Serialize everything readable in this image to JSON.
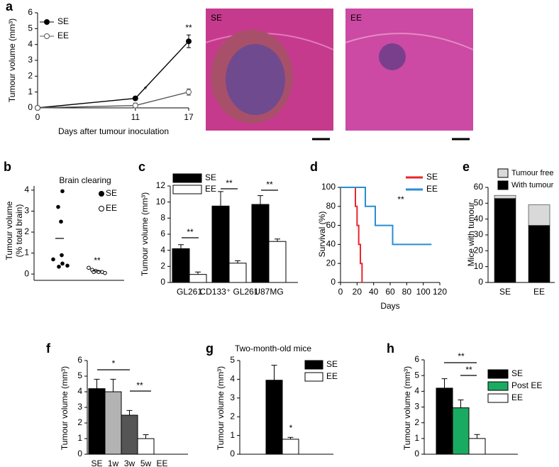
{
  "chart_data": [
    {
      "label": "a",
      "type": "line",
      "x": [
        0,
        11,
        17
      ],
      "xlim": [
        0,
        17
      ],
      "xticks": [
        0,
        11,
        17
      ],
      "ylim": [
        0,
        6
      ],
      "yticks": [
        0,
        1,
        2,
        3,
        4,
        5,
        6
      ],
      "xlabel": "Days after tumour inoculation",
      "ylabel": "Tumour volume (mm³)",
      "series": [
        {
          "name": "SE",
          "color": "#000000",
          "marker": "filled",
          "values": [
            0,
            0.6,
            4.2
          ],
          "errors": [
            0,
            0.1,
            0.4
          ]
        },
        {
          "name": "EE",
          "color": "#555555",
          "marker": "open",
          "values": [
            0,
            0.15,
            1.0
          ],
          "errors": [
            0,
            0.15,
            0.2
          ]
        }
      ],
      "annotations": [
        "*",
        "**"
      ]
    },
    {
      "label": "b",
      "type": "strip",
      "title": "Brain clearing",
      "ylim": [
        -0.3,
        4.2
      ],
      "yticks": [
        0,
        1,
        2,
        3,
        4
      ],
      "ylabel": [
        "Tumour volume",
        "(% total brain)"
      ],
      "series": [
        {
          "name": "SE",
          "color": "#000000",
          "marker": "filled",
          "values": [
            3.95,
            3.2,
            2.5,
            0.9,
            0.7,
            0.5,
            0.4,
            0.35
          ],
          "mean": 1.7
        },
        {
          "name": "EE",
          "color": "#000000",
          "marker": "open",
          "values": [
            0.3,
            0.2,
            0.15,
            0.1,
            0.1,
            0.05,
            0.1
          ],
          "mean": 0.15
        }
      ],
      "annotations": [
        "**"
      ]
    },
    {
      "label": "c",
      "type": "bar",
      "categories": [
        "GL261",
        "CD133⁺ GL261",
        "U87MG"
      ],
      "ylim": [
        0,
        12
      ],
      "yticks": [
        0,
        2,
        4,
        6,
        8,
        10,
        12
      ],
      "ylabel": "Tumour volume (mm³)",
      "series": [
        {
          "name": "SE",
          "color": "#000000",
          "values": [
            4.2,
            9.5,
            9.7
          ],
          "errors": [
            0.5,
            1.8,
            1.1
          ]
        },
        {
          "name": "EE",
          "color": "#ffffff",
          "values": [
            1.0,
            2.4,
            5.1
          ],
          "errors": [
            0.3,
            0.3,
            0.3
          ]
        }
      ],
      "annotations": [
        "**",
        "**",
        "**"
      ]
    },
    {
      "label": "d",
      "type": "line",
      "step": true,
      "xlim": [
        0,
        120
      ],
      "xticks": [
        0,
        20,
        40,
        60,
        80,
        100,
        120
      ],
      "ylim": [
        0,
        100
      ],
      "yticks": [
        0,
        20,
        40,
        60,
        80,
        100
      ],
      "xlabel": "Days",
      "ylabel": "Survival (%)",
      "series": [
        {
          "name": "SE",
          "color": "#e8262b",
          "x": [
            0,
            18,
            20,
            22,
            24,
            26
          ],
          "values": [
            100,
            80,
            60,
            40,
            20,
            0
          ]
        },
        {
          "name": "EE",
          "color": "#2a8dd0",
          "x": [
            0,
            30,
            42,
            63,
            110
          ],
          "values": [
            100,
            80,
            60,
            40,
            40
          ]
        }
      ],
      "annotations": [
        "**"
      ]
    },
    {
      "label": "e",
      "type": "stacked_bar",
      "categories": [
        "SE",
        "EE"
      ],
      "ylim": [
        0,
        60
      ],
      "yticks": [
        0,
        10,
        20,
        30,
        40,
        50,
        60
      ],
      "ylabel": "Mice with tumour",
      "series": [
        {
          "name": "With tumour",
          "color": "#000000",
          "values": [
            53,
            36
          ]
        },
        {
          "name": "Tumour free",
          "color": "#d9d9d9",
          "values": [
            2,
            13
          ]
        }
      ]
    },
    {
      "label": "f",
      "type": "bar",
      "categories": [
        "SE",
        "1w",
        "3w",
        "5w",
        "EE"
      ],
      "values": [
        4.2,
        4.0,
        2.5,
        1.0,
        0
      ],
      "errors": [
        0.6,
        0.8,
        0.3,
        0.25,
        0
      ],
      "colors": [
        "#000000",
        "#b3b3b3",
        "#555555",
        "#ffffff",
        "#ffffff"
      ],
      "ylim": [
        0,
        6
      ],
      "yticks": [
        0,
        1,
        2,
        3,
        4,
        5,
        6
      ],
      "ylabel": "Tumour volume (mm³)",
      "annotations": [
        "*",
        "**"
      ]
    },
    {
      "label": "g",
      "type": "bar",
      "title": "Two-month-old mice",
      "ylim": [
        0,
        5
      ],
      "yticks": [
        0,
        1,
        2,
        3,
        4,
        5
      ],
      "ylabel": "Tumour volume (mm³)",
      "series": [
        {
          "name": "SE",
          "color": "#000000",
          "values": [
            3.95
          ],
          "errors": [
            0.8
          ]
        },
        {
          "name": "EE",
          "color": "#ffffff",
          "values": [
            0.8
          ],
          "errors": [
            0.1
          ]
        }
      ],
      "annotations": [
        "*"
      ]
    },
    {
      "label": "h",
      "type": "bar",
      "ylim": [
        0,
        6
      ],
      "yticks": [
        0,
        1,
        2,
        3,
        4,
        5,
        6
      ],
      "ylabel": "Tumour volume (mm³)",
      "series": [
        {
          "name": "SE",
          "color": "#000000",
          "values": [
            4.2
          ],
          "errors": [
            0.6
          ]
        },
        {
          "name": "Post EE",
          "color": "#1aab62",
          "values": [
            2.95
          ],
          "errors": [
            0.5
          ]
        },
        {
          "name": "EE",
          "color": "#ffffff",
          "values": [
            1.0
          ],
          "errors": [
            0.25
          ]
        }
      ],
      "annotations": [
        "**",
        "**"
      ]
    }
  ],
  "images": [
    {
      "label": "SE"
    },
    {
      "label": "EE"
    }
  ]
}
